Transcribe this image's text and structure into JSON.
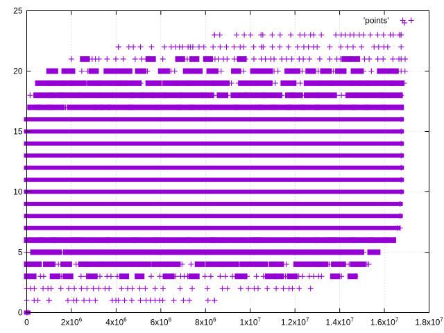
{
  "chart_data": {
    "type": "scatter",
    "title": "",
    "xlabel": "",
    "ylabel": "",
    "xlim": [
      0,
      18000000
    ],
    "ylim": [
      0,
      25
    ],
    "grid": true,
    "legend_placement": "top-right",
    "marker": "plus",
    "series": [
      {
        "name": "'points'",
        "color": "#9400d3",
        "dense_bands": [
          {
            "y": 0,
            "x_min": 0,
            "x_max": 50000
          },
          {
            "y": 1,
            "x_min": 0,
            "x_max": 8400000
          },
          {
            "y": 2,
            "x_min": 0,
            "x_max": 12700000
          },
          {
            "y": 3,
            "x_min": 0,
            "x_max": 14700000
          },
          {
            "y": 4,
            "x_min": 0,
            "x_max": 15300000
          },
          {
            "y": 5,
            "x_min": 0,
            "x_max": 15700000
          },
          {
            "y": 6,
            "x_min": 0,
            "x_max": 16400000
          },
          {
            "y": 7,
            "x_min": 0,
            "x_max": 16600000
          },
          {
            "y": 8,
            "x_min": 0,
            "x_max": 16700000
          },
          {
            "y": 9,
            "x_min": 0,
            "x_max": 16700000
          },
          {
            "y": 10,
            "x_min": 0,
            "x_max": 16750000
          },
          {
            "y": 11,
            "x_min": 0,
            "x_max": 16750000
          },
          {
            "y": 12,
            "x_min": 0,
            "x_max": 16750000
          },
          {
            "y": 13,
            "x_min": 0,
            "x_max": 16750000
          },
          {
            "y": 14,
            "x_min": 0,
            "x_max": 16750000
          },
          {
            "y": 15,
            "x_min": 0,
            "x_max": 16750000
          },
          {
            "y": 16,
            "x_min": 0,
            "x_max": 16750000
          },
          {
            "y": 17,
            "x_min": 150000,
            "x_max": 16750000
          },
          {
            "y": 18,
            "x_min": 150000,
            "x_max": 16750000
          },
          {
            "y": 19,
            "x_min": 500000,
            "x_max": 16750000
          },
          {
            "y": 20,
            "x_min": 1000000,
            "x_max": 16750000
          },
          {
            "y": 21,
            "x_min": 2000000,
            "x_max": 16750000
          },
          {
            "y": 22,
            "x_min": 4100000,
            "x_max": 16750000
          },
          {
            "y": 23,
            "x_min": 8400000,
            "x_max": 16750000
          }
        ],
        "band_density": [
          1,
          0.05,
          0.2,
          0.45,
          0.65,
          0.85,
          0.95,
          1,
          1,
          1,
          1,
          1,
          1,
          1,
          1,
          1,
          1,
          0.95,
          0.8,
          0.65,
          0.5,
          0.35,
          0.2,
          0.05
        ],
        "extra_points": [
          [
            16900000,
            24
          ],
          [
            17200000,
            24.2
          ],
          [
            8400000,
            23
          ],
          [
            12700000,
            23
          ],
          [
            4100000,
            22
          ],
          [
            4100000,
            1
          ],
          [
            8400000,
            1
          ],
          [
            2100000,
            1
          ],
          [
            1000000,
            1
          ],
          [
            500000,
            1
          ],
          [
            16700000,
            7
          ]
        ]
      }
    ],
    "x_ticks": [
      {
        "value": 0,
        "base": "0",
        "exp": ""
      },
      {
        "value": 2000000,
        "base": "2x10",
        "exp": "6"
      },
      {
        "value": 4000000,
        "base": "4x10",
        "exp": "6"
      },
      {
        "value": 6000000,
        "base": "6x10",
        "exp": "6"
      },
      {
        "value": 8000000,
        "base": "8x10",
        "exp": "6"
      },
      {
        "value": 10000000,
        "base": "1x10",
        "exp": "7"
      },
      {
        "value": 12000000,
        "base": "1.2x10",
        "exp": "7"
      },
      {
        "value": 14000000,
        "base": "1.4x10",
        "exp": "7"
      },
      {
        "value": 16000000,
        "base": "1.6x10",
        "exp": "7"
      },
      {
        "value": 18000000,
        "base": "1.8x10",
        "exp": "7"
      }
    ],
    "y_ticks": [
      0,
      5,
      10,
      15,
      20,
      25
    ]
  }
}
